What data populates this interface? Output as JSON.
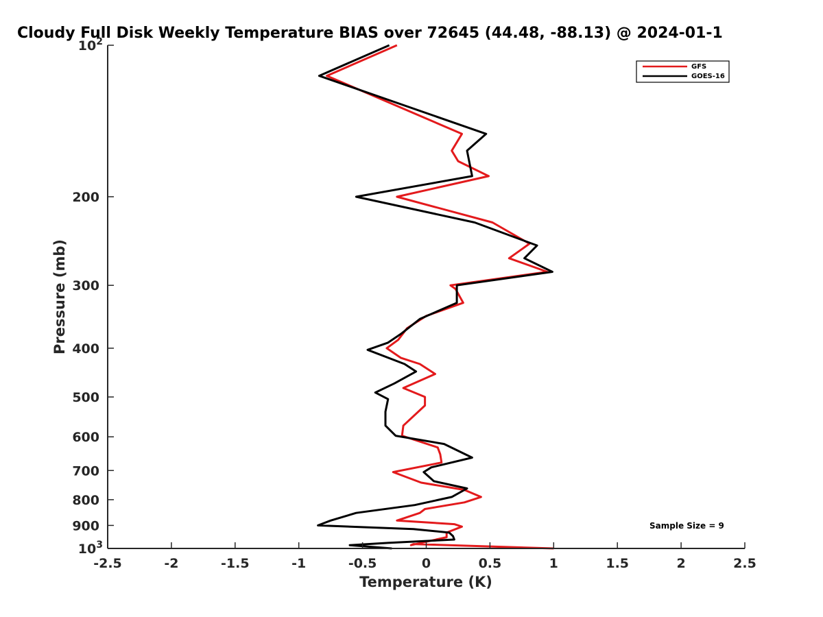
{
  "chart_data": {
    "type": "line",
    "title": "Cloudy Full Disk Weekly Temperature BIAS over 72645 (44.48, -88.13) @ 2024-01-1",
    "xlabel": "Temperature (K)",
    "ylabel": "Pressure (mb)",
    "xlim": [
      -2.5,
      2.5
    ],
    "ylim": [
      100,
      1000
    ],
    "yscale": "log",
    "y_reversed": true,
    "x_ticks": [
      "-2.5",
      "-2",
      "-1.5",
      "-1",
      "-0.5",
      "0",
      "0.5",
      "1",
      "1.5",
      "2",
      "2.5"
    ],
    "y_ticks": [
      {
        "value": 100,
        "label": "10",
        "exp": "2"
      },
      {
        "value": 200,
        "label": "200"
      },
      {
        "value": 300,
        "label": "300"
      },
      {
        "value": 400,
        "label": "400"
      },
      {
        "value": 500,
        "label": "500"
      },
      {
        "value": 600,
        "label": "600"
      },
      {
        "value": 700,
        "label": "700"
      },
      {
        "value": 800,
        "label": "800"
      },
      {
        "value": 900,
        "label": "900"
      },
      {
        "value": 1000,
        "label": "10",
        "exp": "3"
      }
    ],
    "legend_position": "top-right",
    "grid": false,
    "annotation": "Sample Size = 9",
    "series": [
      {
        "name": "GFS",
        "color": "#e31a1c",
        "points": [
          [
            -0.23,
            100
          ],
          [
            -0.78,
            115
          ],
          [
            0.28,
            150
          ],
          [
            0.2,
            162
          ],
          [
            0.25,
            170
          ],
          [
            0.49,
            182
          ],
          [
            -0.23,
            200
          ],
          [
            0.52,
            225
          ],
          [
            0.81,
            248
          ],
          [
            0.65,
            265
          ],
          [
            0.95,
            282
          ],
          [
            0.19,
            300
          ],
          [
            0.23,
            305
          ],
          [
            0.29,
            325
          ],
          [
            0.0,
            345
          ],
          [
            -0.15,
            365
          ],
          [
            -0.22,
            385
          ],
          [
            -0.31,
            400
          ],
          [
            -0.2,
            418
          ],
          [
            -0.05,
            430
          ],
          [
            0.07,
            450
          ],
          [
            -0.18,
            480
          ],
          [
            -0.01,
            500
          ],
          [
            -0.01,
            520
          ],
          [
            -0.18,
            570
          ],
          [
            -0.19,
            597
          ],
          [
            0.09,
            630
          ],
          [
            0.11,
            650
          ],
          [
            0.12,
            675
          ],
          [
            -0.26,
            705
          ],
          [
            -0.04,
            740
          ],
          [
            0.3,
            765
          ],
          [
            0.43,
            790
          ],
          [
            0.3,
            810
          ],
          [
            -0.01,
            835
          ],
          [
            -0.05,
            850
          ],
          [
            -0.23,
            880
          ],
          [
            0.22,
            895
          ],
          [
            0.28,
            905
          ],
          [
            0.16,
            930
          ],
          [
            0.16,
            950
          ],
          [
            -0.12,
            985
          ],
          [
            -0.1,
            980
          ],
          [
            1.0,
            1000
          ]
        ]
      },
      {
        "name": "GOES-16",
        "color": "#000000",
        "points": [
          [
            -0.29,
            100
          ],
          [
            -0.84,
            115
          ],
          [
            0.47,
            150
          ],
          [
            0.32,
            162
          ],
          [
            0.36,
            182
          ],
          [
            -0.55,
            200
          ],
          [
            0.38,
            225
          ],
          [
            0.87,
            250
          ],
          [
            0.77,
            265
          ],
          [
            0.99,
            282
          ],
          [
            0.24,
            300
          ],
          [
            0.24,
            325
          ],
          [
            -0.05,
            350
          ],
          [
            -0.2,
            375
          ],
          [
            -0.3,
            390
          ],
          [
            -0.46,
            403
          ],
          [
            -0.17,
            430
          ],
          [
            -0.08,
            445
          ],
          [
            -0.25,
            470
          ],
          [
            -0.4,
            490
          ],
          [
            -0.3,
            505
          ],
          [
            -0.32,
            535
          ],
          [
            -0.32,
            570
          ],
          [
            -0.24,
            597
          ],
          [
            0.14,
            620
          ],
          [
            0.36,
            660
          ],
          [
            0.04,
            690
          ],
          [
            -0.02,
            705
          ],
          [
            0.06,
            735
          ],
          [
            0.32,
            760
          ],
          [
            0.2,
            790
          ],
          [
            -0.09,
            820
          ],
          [
            -0.55,
            850
          ],
          [
            -0.75,
            880
          ],
          [
            -0.85,
            900
          ],
          [
            -0.1,
            915
          ],
          [
            0.18,
            930
          ],
          [
            0.21,
            945
          ],
          [
            0.22,
            960
          ],
          [
            -0.3,
            975
          ],
          [
            -0.6,
            985
          ],
          [
            -0.27,
            1000
          ]
        ]
      }
    ]
  }
}
